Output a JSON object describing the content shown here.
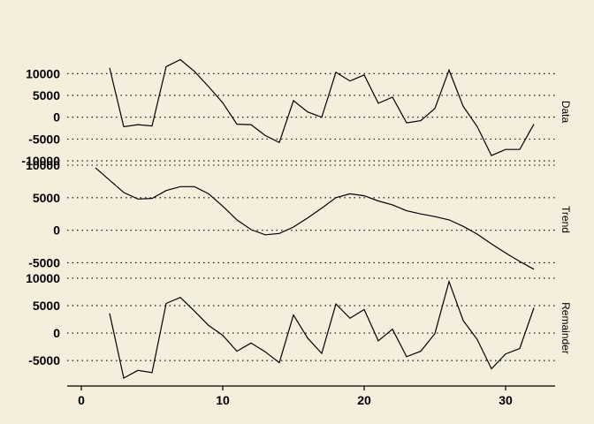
{
  "chart_data": {
    "type": "line",
    "title": "",
    "xlabel": "",
    "ylabel": "",
    "grid": true,
    "x_ticks": [
      0,
      10,
      20,
      30
    ],
    "x_tick_labels": [
      "0",
      "10",
      "20",
      "30"
    ],
    "xlim": [
      -1,
      33.5
    ],
    "panels": [
      {
        "name": "Data",
        "ylim": [
          -11000,
          13500
        ],
        "y_ticks": [
          -10000,
          -5000,
          0,
          5000,
          10000
        ],
        "y_tick_labels": [
          "-10000",
          "-5000",
          "0",
          "5000",
          "10000"
        ],
        "x": [
          2,
          3,
          4,
          5,
          6,
          7,
          8,
          9,
          10,
          11,
          12,
          13,
          14,
          15,
          16,
          17,
          18,
          19,
          20,
          21,
          22,
          23,
          24,
          25,
          26,
          27,
          28,
          29,
          30,
          31,
          32
        ],
        "values": [
          11300,
          -2200,
          -1700,
          -2000,
          11600,
          13200,
          10500,
          7000,
          3300,
          -1600,
          -1700,
          -4200,
          -5800,
          3800,
          1200,
          0,
          10300,
          8300,
          9700,
          3200,
          4600,
          -1300,
          -800,
          2000,
          10800,
          2500,
          -2200,
          -8800,
          -7400,
          -7400,
          -1600
        ]
      },
      {
        "name": "Trend",
        "ylim": [
          -6700,
          10000
        ],
        "y_ticks": [
          -5000,
          0,
          5000,
          10000
        ],
        "y_tick_labels": [
          "-5000",
          "0",
          "5000",
          "10000"
        ],
        "x": [
          1,
          2,
          3,
          4,
          5,
          6,
          7,
          8,
          9,
          10,
          11,
          12,
          13,
          14,
          15,
          16,
          17,
          18,
          19,
          20,
          21,
          22,
          23,
          24,
          25,
          26,
          27,
          28,
          29,
          30,
          31,
          32
        ],
        "values": [
          9600,
          7700,
          5800,
          4800,
          4900,
          6100,
          6700,
          6700,
          5600,
          3700,
          1600,
          100,
          -700,
          -500,
          500,
          1900,
          3400,
          5000,
          5600,
          5300,
          4500,
          3900,
          3000,
          2500,
          2100,
          1600,
          600,
          -600,
          -2100,
          -3500,
          -4800,
          -6000
        ]
      },
      {
        "name": "Remainder",
        "ylim": [
          -9000,
          10800
        ],
        "y_ticks": [
          -5000,
          0,
          5000,
          10000
        ],
        "y_tick_labels": [
          "-5000",
          "0",
          "5000",
          "10000"
        ],
        "x": [
          2,
          3,
          4,
          5,
          6,
          7,
          8,
          9,
          10,
          11,
          12,
          13,
          14,
          15,
          16,
          17,
          18,
          19,
          20,
          21,
          22,
          23,
          24,
          25,
          26,
          27,
          28,
          29,
          30,
          31,
          32
        ],
        "values": [
          3600,
          -8200,
          -6800,
          -7200,
          5400,
          6500,
          4000,
          1400,
          -400,
          -3300,
          -1800,
          -3400,
          -5400,
          3300,
          -900,
          -3700,
          5300,
          2700,
          4300,
          -1400,
          700,
          -4300,
          -3300,
          -100,
          9400,
          2300,
          -1200,
          -6500,
          -3800,
          -2800,
          4600
        ]
      }
    ]
  }
}
